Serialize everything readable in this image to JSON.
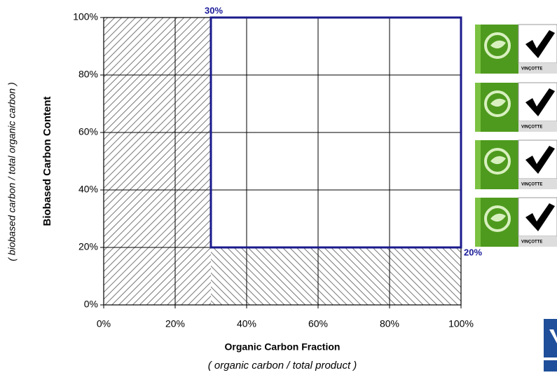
{
  "chart_data": {
    "type": "region",
    "xlabel": "Organic Carbon Fraction",
    "xlabel_note": "( organic carbon / total product )",
    "ylabel": "Biobased Carbon Content",
    "ylabel_note": "( biobased carbon / total organic carbon )",
    "xlim": [
      0,
      100
    ],
    "ylim": [
      0,
      100
    ],
    "xticks": [
      {
        "value": 0,
        "label": "0%"
      },
      {
        "value": 20,
        "label": "20%"
      },
      {
        "value": 40,
        "label": "40%"
      },
      {
        "value": 60,
        "label": "60%"
      },
      {
        "value": 80,
        "label": "80%"
      },
      {
        "value": 100,
        "label": "100%"
      }
    ],
    "yticks": [
      {
        "value": 0,
        "label": "0%"
      },
      {
        "value": 20,
        "label": "20%"
      },
      {
        "value": 40,
        "label": "40%"
      },
      {
        "value": 60,
        "label": "60%"
      },
      {
        "value": 80,
        "label": "80%"
      },
      {
        "value": 100,
        "label": "100%"
      }
    ],
    "grid": true,
    "region": {
      "x_min": 30,
      "y_min": 20,
      "x_label": "30%",
      "y_label": "20%",
      "color": "#1a1a8c"
    },
    "badge_text": "VINÇOTTE"
  }
}
